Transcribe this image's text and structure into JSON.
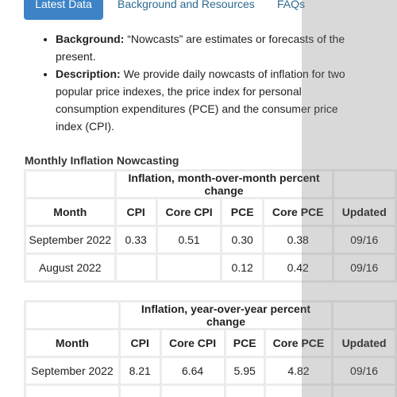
{
  "tabs": [
    "Latest Data",
    "Background and Resources",
    "FAQs"
  ],
  "bullets": [
    {
      "label": "Background:",
      "text": "“Nowcasts” are estimates or forecasts of the present."
    },
    {
      "label": "Description:",
      "text": "We provide daily nowcasts of inflation for two popular price indexes, the price index for personal consumption expenditures (PCE) and the consumer price index (CPI)."
    }
  ],
  "tables": [
    {
      "caption": "Monthly Inflation Nowcasting",
      "group_header": "Inflation, month-over-month percent change",
      "columns": [
        "Month",
        "CPI",
        "Core CPI",
        "PCE",
        "Core PCE",
        "Updated"
      ],
      "rows": [
        [
          "September 2022",
          "0.33",
          "0.51",
          "0.30",
          "0.38",
          "09/16"
        ],
        [
          "August 2022",
          null,
          null,
          "0.12",
          "0.42",
          "09/16"
        ]
      ]
    },
    {
      "group_header": "Inflation, year-over-year percent change",
      "columns": [
        "Month",
        "CPI",
        "Core CPI",
        "PCE",
        "Core PCE",
        "Updated"
      ],
      "rows": [
        [
          "September 2022",
          "8.21",
          "6.64",
          "5.95",
          "4.82",
          "09/16"
        ]
      ]
    }
  ]
}
